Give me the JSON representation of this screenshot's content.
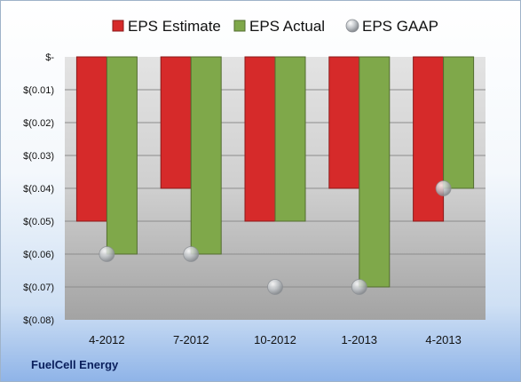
{
  "company_label": "FuelCell Energy",
  "chart_data": {
    "type": "bar",
    "categories": [
      "4-2012",
      "7-2012",
      "10-2012",
      "1-2013",
      "4-2013"
    ],
    "series": [
      {
        "name": "EPS Estimate",
        "kind": "bar",
        "color": "#d62a2a",
        "values": [
          -0.05,
          -0.04,
          -0.05,
          -0.04,
          -0.05
        ]
      },
      {
        "name": "EPS Actual",
        "kind": "bar",
        "color": "#7fa84a",
        "values": [
          -0.06,
          -0.06,
          -0.05,
          -0.07,
          -0.04
        ]
      },
      {
        "name": "EPS GAAP",
        "kind": "marker",
        "color": "#a9aeb3",
        "values": [
          -0.06,
          -0.06,
          -0.07,
          -0.07,
          -0.04
        ]
      }
    ],
    "ylim": [
      -0.08,
      0
    ],
    "yticks": [
      0,
      -0.01,
      -0.02,
      -0.03,
      -0.04,
      -0.05,
      -0.06,
      -0.07,
      -0.08
    ],
    "ytick_labels": [
      "$-",
      "$(0.01)",
      "$(0.02)",
      "$(0.03)",
      "$(0.04)",
      "$(0.05)",
      "$(0.06)",
      "$(0.07)",
      "$(0.08)"
    ],
    "legend_position": "top",
    "grid": true
  }
}
